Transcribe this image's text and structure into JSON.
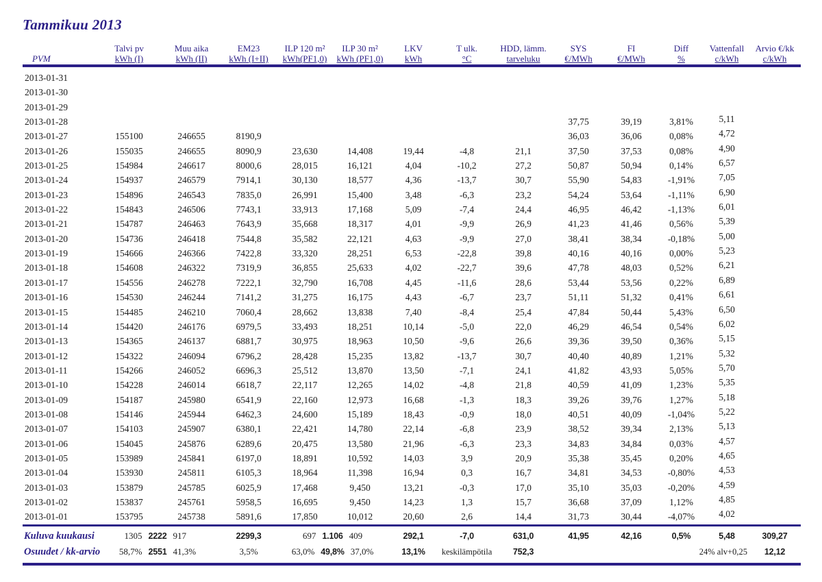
{
  "title": "Tammikuu 2013",
  "colors": {
    "accent": "#2b1f87",
    "text": "#1c1c1c"
  },
  "table": {
    "columns": [
      {
        "key": "date",
        "line1": "PVM",
        "line2": ""
      },
      {
        "key": "talvi",
        "line1": "Talvi pv",
        "line2": "kWh (I)"
      },
      {
        "key": "muu",
        "line1": "Muu aika",
        "line2": "kWh (II)"
      },
      {
        "key": "em23",
        "line1": "EM23",
        "line2": "kWh (I+II)"
      },
      {
        "key": "ilp120",
        "line1": "ILP 120 m²",
        "line2": "kWh(PF1,0)"
      },
      {
        "key": "ilp30",
        "line1": "ILP 30 m²",
        "line2": "kWh (PF1,0)"
      },
      {
        "key": "lkv",
        "line1": "LKV",
        "line2": "kWh"
      },
      {
        "key": "tulk",
        "line1": "T ulk.",
        "line2": "°C"
      },
      {
        "key": "hdd",
        "line1": "HDD, lämm.",
        "line2": "tarveluku"
      },
      {
        "key": "sys",
        "line1": "SYS",
        "line2": "€/MWh"
      },
      {
        "key": "fi",
        "line1": "FI",
        "line2": "€/MWh"
      },
      {
        "key": "diff",
        "line1": "Diff",
        "line2": "%"
      },
      {
        "key": "vattenfall",
        "line1": "Vattenfall",
        "line2": "c/kWh"
      },
      {
        "key": "arvio",
        "line1": "Arvio €/kk",
        "line2": "c/kWh"
      }
    ],
    "rows": [
      {
        "date": "2013-01-31",
        "talvi": "",
        "muu": "",
        "em23": "",
        "ilp120": "",
        "ilp30": "",
        "lkv": "",
        "tulk": "",
        "hdd": "",
        "sys": "",
        "fi": "",
        "diff": "",
        "vattenfall": "",
        "arvio": ""
      },
      {
        "date": "2013-01-30",
        "talvi": "",
        "muu": "",
        "em23": "",
        "ilp120": "",
        "ilp30": "",
        "lkv": "",
        "tulk": "",
        "hdd": "",
        "sys": "",
        "fi": "",
        "diff": "",
        "vattenfall": "",
        "arvio": ""
      },
      {
        "date": "2013-01-29",
        "talvi": "",
        "muu": "",
        "em23": "",
        "ilp120": "",
        "ilp30": "",
        "lkv": "",
        "tulk": "",
        "hdd": "",
        "sys": "",
        "fi": "",
        "diff": "",
        "vattenfall": "",
        "arvio": ""
      },
      {
        "date": "2013-01-28",
        "talvi": "",
        "muu": "",
        "em23": "",
        "ilp120": "",
        "ilp30": "",
        "lkv": "",
        "tulk": "",
        "hdd": "",
        "sys": "37,75",
        "fi": "39,19",
        "diff": "3,81%",
        "vattenfall": "5,11",
        "arvio": ""
      },
      {
        "date": "2013-01-27",
        "talvi": "155100",
        "muu": "246655",
        "em23": "8190,9",
        "ilp120": "",
        "ilp30": "",
        "lkv": "",
        "tulk": "",
        "hdd": "",
        "sys": "36,03",
        "fi": "36,06",
        "diff": "0,08%",
        "vattenfall": "4,72",
        "arvio": ""
      },
      {
        "date": "2013-01-26",
        "talvi": "155035",
        "muu": "246655",
        "em23": "8090,9",
        "ilp120": "23,630",
        "ilp30": "14,408",
        "lkv": "19,44",
        "tulk": "-4,8",
        "hdd": "21,1",
        "sys": "37,50",
        "fi": "37,53",
        "diff": "0,08%",
        "vattenfall": "4,90",
        "arvio": ""
      },
      {
        "date": "2013-01-25",
        "talvi": "154984",
        "muu": "246617",
        "em23": "8000,6",
        "ilp120": "28,015",
        "ilp30": "16,121",
        "lkv": "4,04",
        "tulk": "-10,2",
        "hdd": "27,2",
        "sys": "50,87",
        "fi": "50,94",
        "diff": "0,14%",
        "vattenfall": "6,57",
        "arvio": ""
      },
      {
        "date": "2013-01-24",
        "talvi": "154937",
        "muu": "246579",
        "em23": "7914,1",
        "ilp120": "30,130",
        "ilp30": "18,577",
        "lkv": "4,36",
        "tulk": "-13,7",
        "hdd": "30,7",
        "sys": "55,90",
        "fi": "54,83",
        "diff": "-1,91%",
        "vattenfall": "7,05",
        "arvio": ""
      },
      {
        "date": "2013-01-23",
        "talvi": "154896",
        "muu": "246543",
        "em23": "7835,0",
        "ilp120": "26,991",
        "ilp30": "15,400",
        "lkv": "3,48",
        "tulk": "-6,3",
        "hdd": "23,2",
        "sys": "54,24",
        "fi": "53,64",
        "diff": "-1,11%",
        "vattenfall": "6,90",
        "arvio": ""
      },
      {
        "date": "2013-01-22",
        "talvi": "154843",
        "muu": "246506",
        "em23": "7743,1",
        "ilp120": "33,913",
        "ilp30": "17,168",
        "lkv": "5,09",
        "tulk": "-7,4",
        "hdd": "24,4",
        "sys": "46,95",
        "fi": "46,42",
        "diff": "-1,13%",
        "vattenfall": "6,01",
        "arvio": ""
      },
      {
        "date": "2013-01-21",
        "talvi": "154787",
        "muu": "246463",
        "em23": "7643,9",
        "ilp120": "35,668",
        "ilp30": "18,317",
        "lkv": "4,01",
        "tulk": "-9,9",
        "hdd": "26,9",
        "sys": "41,23",
        "fi": "41,46",
        "diff": "0,56%",
        "vattenfall": "5,39",
        "arvio": ""
      },
      {
        "date": "2013-01-20",
        "talvi": "154736",
        "muu": "246418",
        "em23": "7544,8",
        "ilp120": "35,582",
        "ilp30": "22,121",
        "lkv": "4,63",
        "tulk": "-9,9",
        "hdd": "27,0",
        "sys": "38,41",
        "fi": "38,34",
        "diff": "-0,18%",
        "vattenfall": "5,00",
        "arvio": ""
      },
      {
        "date": "2013-01-19",
        "talvi": "154666",
        "muu": "246366",
        "em23": "7422,8",
        "ilp120": "33,320",
        "ilp30": "28,251",
        "lkv": "6,53",
        "tulk": "-22,8",
        "hdd": "39,8",
        "sys": "40,16",
        "fi": "40,16",
        "diff": "0,00%",
        "vattenfall": "5,23",
        "arvio": ""
      },
      {
        "date": "2013-01-18",
        "talvi": "154608",
        "muu": "246322",
        "em23": "7319,9",
        "ilp120": "36,855",
        "ilp30": "25,633",
        "lkv": "4,02",
        "tulk": "-22,7",
        "hdd": "39,6",
        "sys": "47,78",
        "fi": "48,03",
        "diff": "0,52%",
        "vattenfall": "6,21",
        "arvio": ""
      },
      {
        "date": "2013-01-17",
        "talvi": "154556",
        "muu": "246278",
        "em23": "7222,1",
        "ilp120": "32,790",
        "ilp30": "16,708",
        "lkv": "4,45",
        "tulk": "-11,6",
        "hdd": "28,6",
        "sys": "53,44",
        "fi": "53,56",
        "diff": "0,22%",
        "vattenfall": "6,89",
        "arvio": ""
      },
      {
        "date": "2013-01-16",
        "talvi": "154530",
        "muu": "246244",
        "em23": "7141,2",
        "ilp120": "31,275",
        "ilp30": "16,175",
        "lkv": "4,43",
        "tulk": "-6,7",
        "hdd": "23,7",
        "sys": "51,11",
        "fi": "51,32",
        "diff": "0,41%",
        "vattenfall": "6,61",
        "arvio": ""
      },
      {
        "date": "2013-01-15",
        "talvi": "154485",
        "muu": "246210",
        "em23": "7060,4",
        "ilp120": "28,662",
        "ilp30": "13,838",
        "lkv": "7,40",
        "tulk": "-8,4",
        "hdd": "25,4",
        "sys": "47,84",
        "fi": "50,44",
        "diff": "5,43%",
        "vattenfall": "6,50",
        "arvio": ""
      },
      {
        "date": "2013-01-14",
        "talvi": "154420",
        "muu": "246176",
        "em23": "6979,5",
        "ilp120": "33,493",
        "ilp30": "18,251",
        "lkv": "10,14",
        "tulk": "-5,0",
        "hdd": "22,0",
        "sys": "46,29",
        "fi": "46,54",
        "diff": "0,54%",
        "vattenfall": "6,02",
        "arvio": ""
      },
      {
        "date": "2013-01-13",
        "talvi": "154365",
        "muu": "246137",
        "em23": "6881,7",
        "ilp120": "30,975",
        "ilp30": "18,963",
        "lkv": "10,50",
        "tulk": "-9,6",
        "hdd": "26,6",
        "sys": "39,36",
        "fi": "39,50",
        "diff": "0,36%",
        "vattenfall": "5,15",
        "arvio": ""
      },
      {
        "date": "2013-01-12",
        "talvi": "154322",
        "muu": "246094",
        "em23": "6796,2",
        "ilp120": "28,428",
        "ilp30": "15,235",
        "lkv": "13,82",
        "tulk": "-13,7",
        "hdd": "30,7",
        "sys": "40,40",
        "fi": "40,89",
        "diff": "1,21%",
        "vattenfall": "5,32",
        "arvio": ""
      },
      {
        "date": "2013-01-11",
        "talvi": "154266",
        "muu": "246052",
        "em23": "6696,3",
        "ilp120": "25,512",
        "ilp30": "13,870",
        "lkv": "13,50",
        "tulk": "-7,1",
        "hdd": "24,1",
        "sys": "41,82",
        "fi": "43,93",
        "diff": "5,05%",
        "vattenfall": "5,70",
        "arvio": ""
      },
      {
        "date": "2013-01-10",
        "talvi": "154228",
        "muu": "246014",
        "em23": "6618,7",
        "ilp120": "22,117",
        "ilp30": "12,265",
        "lkv": "14,02",
        "tulk": "-4,8",
        "hdd": "21,8",
        "sys": "40,59",
        "fi": "41,09",
        "diff": "1,23%",
        "vattenfall": "5,35",
        "arvio": ""
      },
      {
        "date": "2013-01-09",
        "talvi": "154187",
        "muu": "245980",
        "em23": "6541,9",
        "ilp120": "22,160",
        "ilp30": "12,973",
        "lkv": "16,68",
        "tulk": "-1,3",
        "hdd": "18,3",
        "sys": "39,26",
        "fi": "39,76",
        "diff": "1,27%",
        "vattenfall": "5,18",
        "arvio": ""
      },
      {
        "date": "2013-01-08",
        "talvi": "154146",
        "muu": "245944",
        "em23": "6462,3",
        "ilp120": "24,600",
        "ilp30": "15,189",
        "lkv": "18,43",
        "tulk": "-0,9",
        "hdd": "18,0",
        "sys": "40,51",
        "fi": "40,09",
        "diff": "-1,04%",
        "vattenfall": "5,22",
        "arvio": ""
      },
      {
        "date": "2013-01-07",
        "talvi": "154103",
        "muu": "245907",
        "em23": "6380,1",
        "ilp120": "22,421",
        "ilp30": "14,780",
        "lkv": "22,14",
        "tulk": "-6,8",
        "hdd": "23,9",
        "sys": "38,52",
        "fi": "39,34",
        "diff": "2,13%",
        "vattenfall": "5,13",
        "arvio": ""
      },
      {
        "date": "2013-01-06",
        "talvi": "154045",
        "muu": "245876",
        "em23": "6289,6",
        "ilp120": "20,475",
        "ilp30": "13,580",
        "lkv": "21,96",
        "tulk": "-6,3",
        "hdd": "23,3",
        "sys": "34,83",
        "fi": "34,84",
        "diff": "0,03%",
        "vattenfall": "4,57",
        "arvio": ""
      },
      {
        "date": "2013-01-05",
        "talvi": "153989",
        "muu": "245841",
        "em23": "6197,0",
        "ilp120": "18,891",
        "ilp30": "10,592",
        "lkv": "14,03",
        "tulk": "3,9",
        "hdd": "20,9",
        "sys": "35,38",
        "fi": "35,45",
        "diff": "0,20%",
        "vattenfall": "4,65",
        "arvio": ""
      },
      {
        "date": "2013-01-04",
        "talvi": "153930",
        "muu": "245811",
        "em23": "6105,3",
        "ilp120": "18,964",
        "ilp30": "11,398",
        "lkv": "16,94",
        "tulk": "0,3",
        "hdd": "16,7",
        "sys": "34,81",
        "fi": "34,53",
        "diff": "-0,80%",
        "vattenfall": "4,53",
        "arvio": ""
      },
      {
        "date": "2013-01-03",
        "talvi": "153879",
        "muu": "245785",
        "em23": "6025,9",
        "ilp120": "17,468",
        "ilp30": "9,450",
        "lkv": "13,21",
        "tulk": "-0,3",
        "hdd": "17,0",
        "sys": "35,10",
        "fi": "35,03",
        "diff": "-0,20%",
        "vattenfall": "4,59",
        "arvio": ""
      },
      {
        "date": "2013-01-02",
        "talvi": "153837",
        "muu": "245761",
        "em23": "5958,5",
        "ilp120": "16,695",
        "ilp30": "9,450",
        "lkv": "14,23",
        "tulk": "1,3",
        "hdd": "15,7",
        "sys": "36,68",
        "fi": "37,09",
        "diff": "1,12%",
        "vattenfall": "4,85",
        "arvio": ""
      },
      {
        "date": "2013-01-01",
        "talvi": "153795",
        "muu": "245738",
        "em23": "5891,6",
        "ilp120": "17,850",
        "ilp30": "10,012",
        "lkv": "20,60",
        "tulk": "2,6",
        "hdd": "14,4",
        "sys": "31,73",
        "fi": "30,44",
        "diff": "-4,07%",
        "vattenfall": "4,02",
        "arvio": ""
      }
    ],
    "footer": {
      "rows": [
        {
          "label": "Kuluva kuukausi",
          "talvi_group": {
            "left": "1305",
            "mid": "2222",
            "right": "917"
          },
          "em23": {
            "text": "2299,3",
            "bold": true
          },
          "ilp_group": {
            "left": "697",
            "mid": "1.106",
            "right": "409"
          },
          "lkv": {
            "text": "292,1",
            "bold": true
          },
          "tulk": {
            "text": "-7,0",
            "bold": true
          },
          "hdd": {
            "text": "631,0",
            "bold": true
          },
          "sys": {
            "text": "41,95",
            "bold": true
          },
          "fi": {
            "text": "42,16",
            "bold": true
          },
          "diff": {
            "text": "0,5%",
            "bold": true
          },
          "vattenfall": {
            "text": "5,48",
            "bold": true
          },
          "arvio": {
            "text": "309,27",
            "bold": true
          }
        },
        {
          "label": "Osuudet / kk-arvio",
          "talvi_group": {
            "left": "58,7%",
            "mid": "2551",
            "right": "41,3%"
          },
          "em23": {
            "text": "3,5%",
            "bold": false
          },
          "ilp_group": {
            "left": "63,0%",
            "mid": "49,8%",
            "right": "37,0%"
          },
          "lkv": {
            "text": "13,1%",
            "bold": true
          },
          "tulk": {
            "text": "keskilämpötila",
            "bold": false,
            "small": true
          },
          "hdd": {
            "text": "752,3",
            "bold": true
          },
          "sys": {
            "text": "",
            "bold": false
          },
          "fi": {
            "text": "",
            "bold": false
          },
          "vat_note": "24% alv+0,25",
          "arvio": {
            "text": "12,12",
            "bold": true
          }
        }
      ]
    }
  }
}
